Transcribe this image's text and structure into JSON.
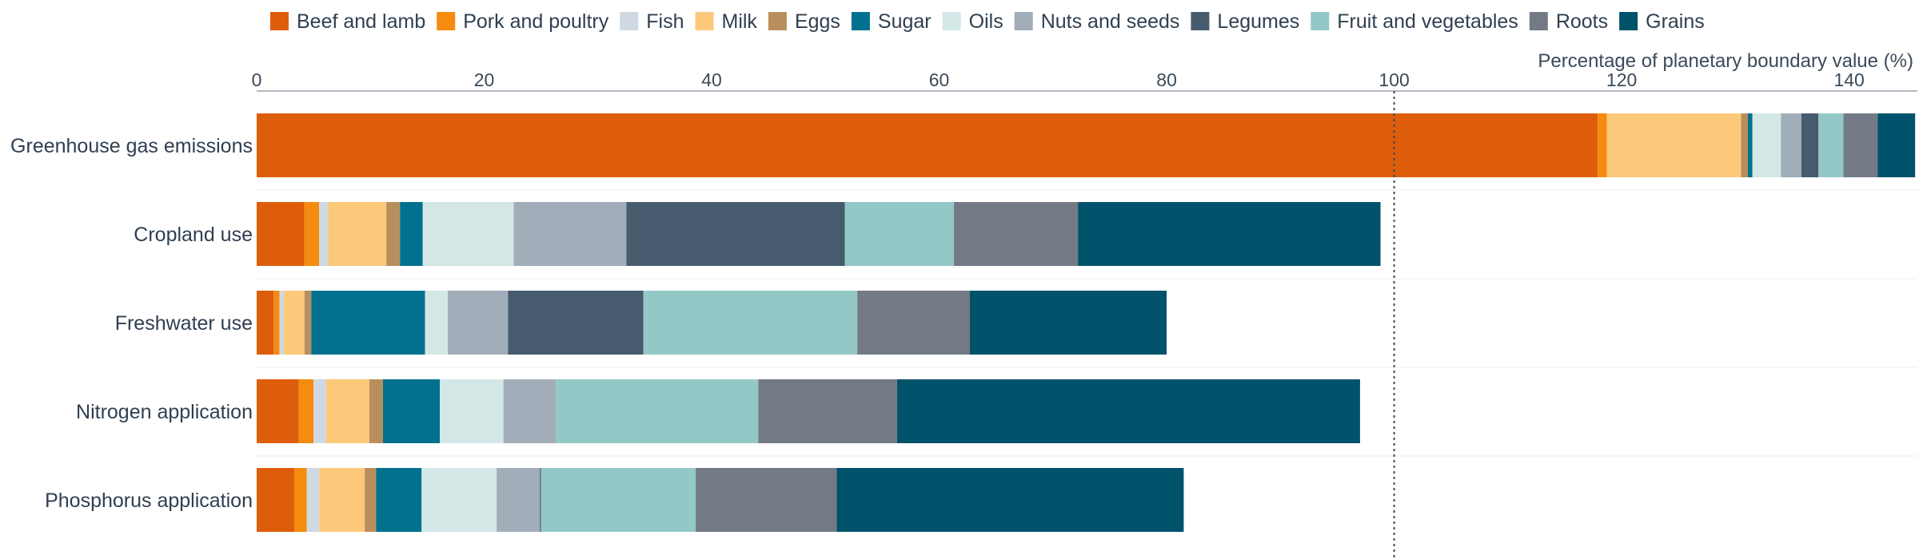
{
  "chart_data": {
    "type": "bar",
    "orientation": "horizontal",
    "stacked": true,
    "xlabel": "Percentage of planetary boundary value (%)",
    "xlim": [
      0,
      146
    ],
    "xticks": [
      0,
      20,
      40,
      60,
      80,
      100,
      120,
      140
    ],
    "reference_line": {
      "x": 100,
      "style": "dotted"
    },
    "legend_position": "top",
    "grid": false,
    "categories": [
      "Greenhouse gas emissions",
      "Cropland use",
      "Freshwater use",
      "Nitrogen application",
      "Phosphorus application"
    ],
    "series": [
      {
        "name": "Beef and lamb",
        "color": "#de5d0b",
        "values": [
          117.9,
          4.2,
          1.5,
          3.7,
          3.3
        ]
      },
      {
        "name": "Pork and poultry",
        "color": "#f58b0f",
        "values": [
          0.8,
          1.3,
          0.5,
          1.3,
          1.1
        ]
      },
      {
        "name": "Fish",
        "color": "#cfd9e3",
        "values": [
          0.0,
          0.8,
          0.4,
          1.1,
          1.1
        ]
      },
      {
        "name": "Milk",
        "color": "#fcc97a",
        "values": [
          11.8,
          5.1,
          1.8,
          3.8,
          4.0
        ]
      },
      {
        "name": "Eggs",
        "color": "#b88f5c",
        "values": [
          0.6,
          1.2,
          0.6,
          1.2,
          1.0
        ]
      },
      {
        "name": "Sugar",
        "color": "#01718f",
        "values": [
          0.4,
          2.0,
          10.0,
          5.0,
          4.0
        ]
      },
      {
        "name": "Oils",
        "color": "#d3e8e6",
        "values": [
          2.5,
          8.0,
          2.0,
          5.6,
          6.6
        ]
      },
      {
        "name": "Nuts and seeds",
        "color": "#a1adb8",
        "values": [
          1.8,
          9.9,
          5.3,
          4.6,
          3.8
        ]
      },
      {
        "name": "Legumes",
        "color": "#465b6d",
        "values": [
          1.5,
          19.2,
          11.9,
          0.0,
          0.1
        ]
      },
      {
        "name": "Fruit and vegetables",
        "color": "#94c8c6",
        "values": [
          2.2,
          9.6,
          18.8,
          17.8,
          13.6
        ]
      },
      {
        "name": "Roots",
        "color": "#737a85",
        "values": [
          3.0,
          10.9,
          9.9,
          12.2,
          12.4
        ]
      },
      {
        "name": "Grains",
        "color": "#01526b",
        "values": [
          3.3,
          26.6,
          17.3,
          40.7,
          30.5
        ]
      }
    ]
  }
}
